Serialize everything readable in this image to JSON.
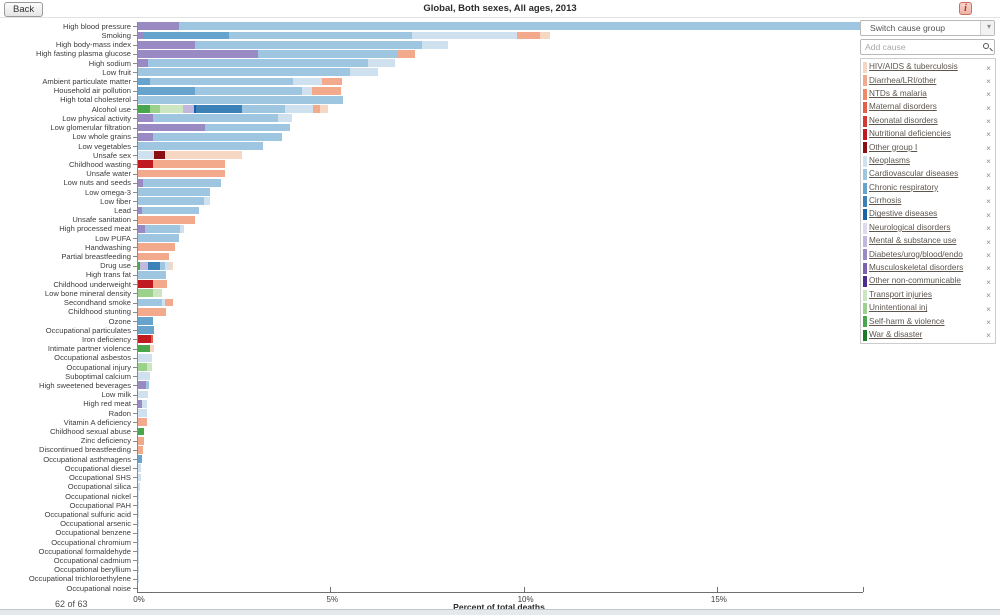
{
  "header": {
    "back_label": "Back",
    "title": "Global, Both sexes, All ages, 2013",
    "info_label": "i"
  },
  "controls": {
    "switch_cause_group_label": "Switch cause group",
    "dropdown_icon": "▾",
    "add_cause_placeholder": "Add cause",
    "search_icon": "magnifier",
    "remove_icon": "×"
  },
  "footer": {
    "count_label": "62 of 63"
  },
  "chart_data": {
    "type": "bar",
    "stacked": true,
    "orientation": "horizontal",
    "title": "Global, Both sexes, All ages, 2013",
    "xlabel": "Percent of total deaths",
    "x_ticks": [
      "0%",
      "5%",
      "10%",
      "15%"
    ],
    "x_tick_values": [
      0,
      5,
      10,
      15
    ],
    "xlim": [
      0,
      18.78
    ],
    "grid": false,
    "legend_position": "right-panel",
    "causes": [
      {
        "id": "hiv_tb",
        "label": "HIV/AIDS & tuberculosis",
        "color": "#f6d7c4"
      },
      {
        "id": "diarrhea_lri",
        "label": "Diarrhea/LRI/other",
        "color": "#f3a98c"
      },
      {
        "id": "ntds_malaria",
        "label": "NTDs & malaria",
        "color": "#ee8a66"
      },
      {
        "id": "maternal",
        "label": "Maternal disorders",
        "color": "#e3604a"
      },
      {
        "id": "neonatal",
        "label": "Neonatal disorders",
        "color": "#d43a30"
      },
      {
        "id": "nutritional",
        "label": "Nutritional deficiencies",
        "color": "#c01a20"
      },
      {
        "id": "other_group_i",
        "label": "Other group I",
        "color": "#8a0e12"
      },
      {
        "id": "neoplasms",
        "label": "Neoplasms",
        "color": "#cfe0ef"
      },
      {
        "id": "cardiovascular",
        "label": "Cardiovascular diseases",
        "color": "#9fc6e1"
      },
      {
        "id": "chronic_resp",
        "label": "Chronic respiratory",
        "color": "#67a4cd"
      },
      {
        "id": "cirrhosis",
        "label": "Cirrhosis",
        "color": "#3c81b8"
      },
      {
        "id": "digestive",
        "label": "Digestive diseases",
        "color": "#1b61a5"
      },
      {
        "id": "neurological",
        "label": "Neurological disorders",
        "color": "#ded9ec"
      },
      {
        "id": "mental",
        "label": "Mental & substance use",
        "color": "#c2b7dd"
      },
      {
        "id": "diabetes_urog",
        "label": "Diabetes/urog/blood/endo",
        "color": "#998ac4"
      },
      {
        "id": "musculoskeletal",
        "label": "Musculoskeletal disorders",
        "color": "#7a63ae"
      },
      {
        "id": "other_ncd",
        "label": "Other non-communicable",
        "color": "#4f2d8f"
      },
      {
        "id": "transport",
        "label": "Transport injuries",
        "color": "#cbe6c1"
      },
      {
        "id": "unintentional",
        "label": "Unintentional inj",
        "color": "#9bd18d"
      },
      {
        "id": "self_harm",
        "label": "Self-harm & violence",
        "color": "#4aa64c"
      },
      {
        "id": "war",
        "label": "War & disaster",
        "color": "#1b7b28"
      }
    ],
    "rows": [
      {
        "label": "High blood pressure",
        "segments": [
          [
            "diabetes_urog",
            1.05
          ],
          [
            "cardiovascular",
            17.63
          ]
        ]
      },
      {
        "label": "Smoking",
        "segments": [
          [
            "diabetes_urog",
            0.15
          ],
          [
            "chronic_resp",
            2.2
          ],
          [
            "cardiovascular",
            4.75
          ],
          [
            "neoplasms",
            2.7
          ],
          [
            "diarrhea_lri",
            0.6
          ],
          [
            "hiv_tb",
            0.25
          ]
        ]
      },
      {
        "label": "High body-mass index",
        "segments": [
          [
            "diabetes_urog",
            1.47
          ],
          [
            "cardiovascular",
            5.87
          ],
          [
            "neoplasms",
            0.69
          ]
        ]
      },
      {
        "label": "High fasting plasma glucose",
        "segments": [
          [
            "diabetes_urog",
            3.1
          ],
          [
            "cardiovascular",
            3.62
          ],
          [
            "diarrhea_lri",
            0.45
          ]
        ]
      },
      {
        "label": "High sodium",
        "segments": [
          [
            "diabetes_urog",
            0.26
          ],
          [
            "cardiovascular",
            5.7
          ],
          [
            "neoplasms",
            0.7
          ]
        ]
      },
      {
        "label": "Low fruit",
        "segments": [
          [
            "cardiovascular",
            5.48
          ],
          [
            "neoplasms",
            0.72
          ]
        ]
      },
      {
        "label": "Ambient particulate matter",
        "segments": [
          [
            "chronic_resp",
            0.3
          ],
          [
            "cardiovascular",
            3.72
          ],
          [
            "neoplasms",
            0.73
          ],
          [
            "diarrhea_lri",
            0.53
          ]
        ]
      },
      {
        "label": "Household air pollution",
        "segments": [
          [
            "chronic_resp",
            1.47
          ],
          [
            "cardiovascular",
            2.76
          ],
          [
            "neoplasms",
            0.26
          ],
          [
            "diarrhea_lri",
            0.76
          ]
        ]
      },
      {
        "label": "High total cholesterol",
        "segments": [
          [
            "cardiovascular",
            5.29
          ]
        ]
      },
      {
        "label": "Alcohol use",
        "segments": [
          [
            "self_harm",
            0.32
          ],
          [
            "unintentional",
            0.25
          ],
          [
            "transport",
            0.6
          ],
          [
            "mental",
            0.27
          ],
          [
            "digestive",
            0.06
          ],
          [
            "cirrhosis",
            1.2
          ],
          [
            "cardiovascular",
            1.1
          ],
          [
            "neoplasms",
            0.72
          ],
          [
            "diarrhea_lri",
            0.19
          ],
          [
            "hiv_tb",
            0.21
          ]
        ]
      },
      {
        "label": "Low physical activity",
        "segments": [
          [
            "diabetes_urog",
            0.39
          ],
          [
            "cardiovascular",
            3.24
          ],
          [
            "neoplasms",
            0.35
          ]
        ]
      },
      {
        "label": "Low glomerular filtration",
        "segments": [
          [
            "diabetes_urog",
            1.73
          ],
          [
            "cardiovascular",
            2.2
          ]
        ]
      },
      {
        "label": "Low whole grains",
        "segments": [
          [
            "diabetes_urog",
            0.39
          ],
          [
            "cardiovascular",
            3.33
          ]
        ]
      },
      {
        "label": "Low vegetables",
        "segments": [
          [
            "cardiovascular",
            3.24
          ]
        ]
      },
      {
        "label": "Unsafe sex",
        "segments": [
          [
            "neoplasms",
            0.41
          ],
          [
            "other_group_i",
            0.28
          ],
          [
            "hiv_tb",
            2.0
          ]
        ]
      },
      {
        "label": "Childhood wasting",
        "segments": [
          [
            "nutritional",
            0.39
          ],
          [
            "diarrhea_lri",
            1.87
          ]
        ]
      },
      {
        "label": "Unsafe water",
        "segments": [
          [
            "diarrhea_lri",
            2.26
          ]
        ]
      },
      {
        "label": "Low nuts and seeds",
        "segments": [
          [
            "diabetes_urog",
            0.13
          ],
          [
            "cardiovascular",
            2.03
          ]
        ]
      },
      {
        "label": "Low omega-3",
        "segments": [
          [
            "cardiovascular",
            1.86
          ]
        ]
      },
      {
        "label": "Low fiber",
        "segments": [
          [
            "cardiovascular",
            1.7
          ],
          [
            "neoplasms",
            0.15
          ]
        ]
      },
      {
        "label": "Lead",
        "segments": [
          [
            "diabetes_urog",
            0.1
          ],
          [
            "cardiovascular",
            1.47
          ]
        ]
      },
      {
        "label": "Unsafe sanitation",
        "segments": [
          [
            "diarrhea_lri",
            1.47
          ]
        ]
      },
      {
        "label": "High processed meat",
        "segments": [
          [
            "diabetes_urog",
            0.17
          ],
          [
            "cardiovascular",
            0.92
          ],
          [
            "neoplasms",
            0.09
          ]
        ]
      },
      {
        "label": "Low PUFA",
        "segments": [
          [
            "cardiovascular",
            1.05
          ]
        ]
      },
      {
        "label": "Handwashing",
        "segments": [
          [
            "diarrhea_lri",
            0.95
          ]
        ]
      },
      {
        "label": "Partial breastfeeding",
        "segments": [
          [
            "diarrhea_lri",
            0.8
          ]
        ]
      },
      {
        "label": "Drug use",
        "segments": [
          [
            "self_harm",
            0.05
          ],
          [
            "mental",
            0.22
          ],
          [
            "cirrhosis",
            0.3
          ],
          [
            "cardiovascular",
            0.12
          ],
          [
            "neoplasms",
            0.1
          ],
          [
            "hiv_tb",
            0.12
          ]
        ]
      },
      {
        "label": "High trans fat",
        "segments": [
          [
            "cardiovascular",
            0.72
          ]
        ]
      },
      {
        "label": "Childhood underweight",
        "segments": [
          [
            "nutritional",
            0.39
          ],
          [
            "diarrhea_lri",
            0.35
          ]
        ]
      },
      {
        "label": "Low bone mineral density",
        "segments": [
          [
            "unintentional",
            0.4
          ],
          [
            "transport",
            0.21
          ]
        ]
      },
      {
        "label": "Secondhand smoke",
        "segments": [
          [
            "cardiovascular",
            0.62
          ],
          [
            "neoplasms",
            0.08
          ],
          [
            "diarrhea_lri",
            0.21
          ]
        ]
      },
      {
        "label": "Childhood stunting",
        "segments": [
          [
            "diarrhea_lri",
            0.73
          ]
        ]
      },
      {
        "label": "Ozone",
        "segments": [
          [
            "chronic_resp",
            0.39
          ]
        ]
      },
      {
        "label": "Occupational particulates",
        "segments": [
          [
            "chronic_resp",
            0.41
          ]
        ]
      },
      {
        "label": "Iron deficiency",
        "segments": [
          [
            "nutritional",
            0.33
          ],
          [
            "maternal",
            0.05
          ]
        ]
      },
      {
        "label": "Intimate partner violence",
        "segments": [
          [
            "self_harm",
            0.3
          ],
          [
            "hiv_tb",
            0.11
          ]
        ]
      },
      {
        "label": "Occupational asbestos",
        "segments": [
          [
            "neoplasms",
            0.36
          ]
        ]
      },
      {
        "label": "Occupational injury",
        "segments": [
          [
            "unintentional",
            0.23
          ],
          [
            "transport",
            0.12
          ]
        ]
      },
      {
        "label": "Suboptimal calcium",
        "segments": [
          [
            "neoplasms",
            0.3
          ]
        ]
      },
      {
        "label": "High sweetened beverages",
        "segments": [
          [
            "diabetes_urog",
            0.2
          ],
          [
            "cardiovascular",
            0.08
          ]
        ]
      },
      {
        "label": "Low milk",
        "segments": [
          [
            "neoplasms",
            0.26
          ]
        ]
      },
      {
        "label": "High red meat",
        "segments": [
          [
            "diabetes_urog",
            0.1
          ],
          [
            "neoplasms",
            0.14
          ]
        ]
      },
      {
        "label": "Radon",
        "segments": [
          [
            "neoplasms",
            0.22
          ]
        ]
      },
      {
        "label": "Vitamin A deficiency",
        "segments": [
          [
            "diarrhea_lri",
            0.22
          ]
        ]
      },
      {
        "label": "Childhood sexual abuse",
        "segments": [
          [
            "self_harm",
            0.16
          ]
        ]
      },
      {
        "label": "Zinc deficiency",
        "segments": [
          [
            "diarrhea_lri",
            0.16
          ]
        ]
      },
      {
        "label": "Discontinued breastfeeding",
        "segments": [
          [
            "diarrhea_lri",
            0.13
          ]
        ]
      },
      {
        "label": "Occupational asthmagens",
        "segments": [
          [
            "chronic_resp",
            0.1
          ]
        ]
      },
      {
        "label": "Occupational diesel",
        "segments": [
          [
            "neoplasms",
            0.09
          ]
        ]
      },
      {
        "label": "Occupational SHS",
        "segments": [
          [
            "neoplasms",
            0.07
          ]
        ]
      },
      {
        "label": "Occupational silica",
        "segments": [
          [
            "neoplasms",
            0.05
          ]
        ]
      },
      {
        "label": "Occupational nickel",
        "segments": [
          [
            "neoplasms",
            0.03
          ]
        ]
      },
      {
        "label": "Occupational PAH",
        "segments": [
          [
            "neoplasms",
            0.03
          ]
        ]
      },
      {
        "label": "Occupational sulfuric acid",
        "segments": [
          [
            "neoplasms",
            0.02
          ]
        ]
      },
      {
        "label": "Occupational arsenic",
        "segments": [
          [
            "neoplasms",
            0.02
          ]
        ]
      },
      {
        "label": "Occupational benzene",
        "segments": [
          [
            "neoplasms",
            0.02
          ]
        ]
      },
      {
        "label": "Occupational chromium",
        "segments": [
          [
            "neoplasms",
            0.015
          ]
        ]
      },
      {
        "label": "Occupational formaldehyde",
        "segments": [
          [
            "neoplasms",
            0.01
          ]
        ]
      },
      {
        "label": "Occupational cadmium",
        "segments": [
          [
            "neoplasms",
            0.01
          ]
        ]
      },
      {
        "label": "Occupational beryllium",
        "segments": [
          [
            "neoplasms",
            0.008
          ]
        ]
      },
      {
        "label": "Occupational trichloroethylene",
        "segments": [
          [
            "neoplasms",
            0.005
          ]
        ]
      },
      {
        "label": "Occupational noise",
        "segments": []
      }
    ]
  }
}
